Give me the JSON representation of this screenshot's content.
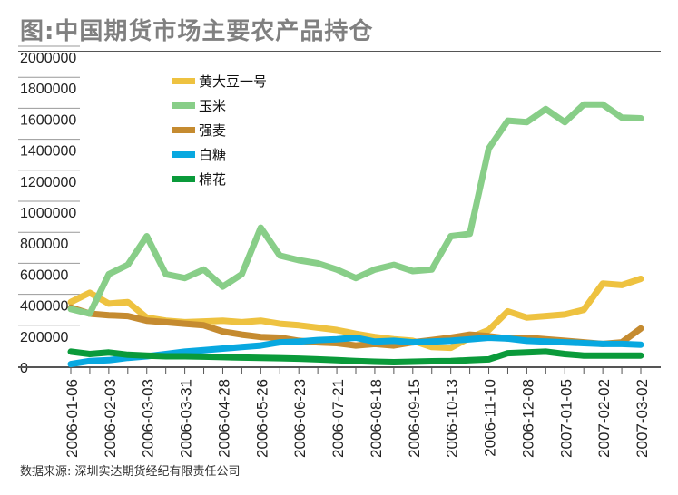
{
  "title": "图:中国期货市场主要农产品持仓",
  "source": "数据来源:  深圳实达期货经纪有限责任公司",
  "chart_data": {
    "type": "line",
    "title": "图:中国期货市场主要农产品持仓",
    "xlabel": "",
    "ylabel": "",
    "ylim": [
      0,
      2000000
    ],
    "yticks": [
      0,
      200000,
      400000,
      600000,
      800000,
      1000000,
      1200000,
      1400000,
      1600000,
      1800000,
      2000000
    ],
    "ytick_labels": [
      "0",
      "200000",
      "400000",
      "600000",
      "800000",
      "1000000",
      "1200000",
      "1400000",
      "1600000",
      "1800000",
      "2000000"
    ],
    "x_tick_labels": [
      "2006-01-06",
      "2006-02-03",
      "2006-03-03",
      "2006-03-31",
      "2006-04-28",
      "2006-05-26",
      "2006-06-23",
      "2006-07-21",
      "2006-08-18",
      "2006-09-15",
      "2006-10-13",
      "2006-11-10",
      "2006-12-08",
      "2007-01-05",
      "2007-02-02",
      "2007-03-02"
    ],
    "x": [
      "2006-01-06",
      "2006-01-20",
      "2006-02-03",
      "2006-02-17",
      "2006-03-03",
      "2006-03-17",
      "2006-03-31",
      "2006-04-14",
      "2006-04-28",
      "2006-05-12",
      "2006-05-26",
      "2006-06-09",
      "2006-06-23",
      "2006-07-07",
      "2006-07-21",
      "2006-08-04",
      "2006-08-18",
      "2006-09-01",
      "2006-09-15",
      "2006-09-29",
      "2006-10-13",
      "2006-10-27",
      "2006-11-10",
      "2006-11-24",
      "2006-12-08",
      "2006-12-22",
      "2007-01-05",
      "2007-01-19",
      "2007-02-02",
      "2007-02-16",
      "2007-03-02"
    ],
    "grid": true,
    "legend_position": "top-left",
    "series": [
      {
        "name": "黄大豆一号",
        "color": "#EEC240",
        "values": [
          420000,
          480000,
          410000,
          420000,
          320000,
          300000,
          290000,
          295000,
          300000,
          290000,
          300000,
          280000,
          270000,
          255000,
          240000,
          215000,
          195000,
          180000,
          170000,
          130000,
          125000,
          190000,
          240000,
          360000,
          320000,
          330000,
          340000,
          370000,
          540000,
          530000,
          570000
        ]
      },
      {
        "name": "玉米",
        "color": "#88CE88",
        "values": [
          375000,
          345000,
          600000,
          660000,
          845000,
          600000,
          575000,
          630000,
          520000,
          600000,
          900000,
          720000,
          690000,
          670000,
          630000,
          575000,
          630000,
          660000,
          620000,
          630000,
          845000,
          860000,
          1410000,
          1590000,
          1580000,
          1665000,
          1580000,
          1695000,
          1695000,
          1610000,
          1605000
        ]
      },
      {
        "name": "强麦",
        "color": "#C58B30",
        "values": [
          385000,
          345000,
          335000,
          330000,
          300000,
          290000,
          280000,
          270000,
          230000,
          210000,
          195000,
          190000,
          170000,
          160000,
          155000,
          140000,
          150000,
          140000,
          160000,
          175000,
          190000,
          210000,
          200000,
          185000,
          190000,
          180000,
          170000,
          160000,
          150000,
          160000,
          250000
        ]
      },
      {
        "name": "白糖",
        "color": "#08A8E0",
        "values": [
          20000,
          40000,
          45000,
          60000,
          70000,
          85000,
          100000,
          110000,
          120000,
          130000,
          140000,
          160000,
          165000,
          175000,
          180000,
          190000,
          165000,
          170000,
          160000,
          165000,
          170000,
          180000,
          190000,
          185000,
          170000,
          165000,
          160000,
          155000,
          150000,
          150000,
          145000
        ]
      },
      {
        "name": "棉花",
        "color": "#0A9A3A",
        "values": [
          100000,
          85000,
          95000,
          80000,
          75000,
          70000,
          70000,
          68000,
          65000,
          62000,
          60000,
          58000,
          55000,
          50000,
          45000,
          40000,
          35000,
          32000,
          35000,
          38000,
          40000,
          45000,
          50000,
          90000,
          95000,
          100000,
          85000,
          75000,
          75000,
          75000,
          75000
        ]
      }
    ]
  }
}
